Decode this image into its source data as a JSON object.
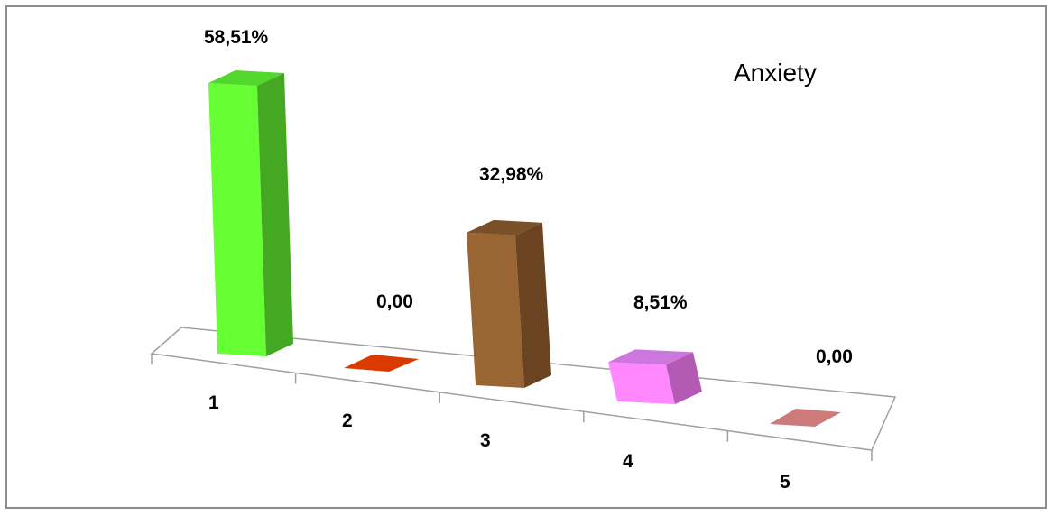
{
  "chart_data": {
    "type": "bar",
    "title": "Anxiety",
    "categories": [
      "1",
      "2",
      "3",
      "4",
      "5"
    ],
    "values": [
      58.51,
      0.0,
      32.98,
      8.51,
      0.0
    ],
    "value_labels": [
      "58,51%",
      "0,00",
      "32,98%",
      "8,51%",
      "0,00"
    ],
    "ylim": [
      0,
      60
    ],
    "grid": false,
    "legend": "none",
    "colors": {
      "bar_front": [
        "#66ff33",
        "#d83a00",
        "#996633",
        "#ff88ff",
        "#cc7a7a"
      ],
      "bar_side": [
        "#44a822",
        "#a02a00",
        "#6a4420",
        "#b45ab4",
        "#9a5858"
      ],
      "bar_top": [
        "#52d82a",
        "#c03300",
        "#7a5028",
        "#cc77dd",
        "#b26868"
      ],
      "axis": "#a0a0a0"
    }
  }
}
